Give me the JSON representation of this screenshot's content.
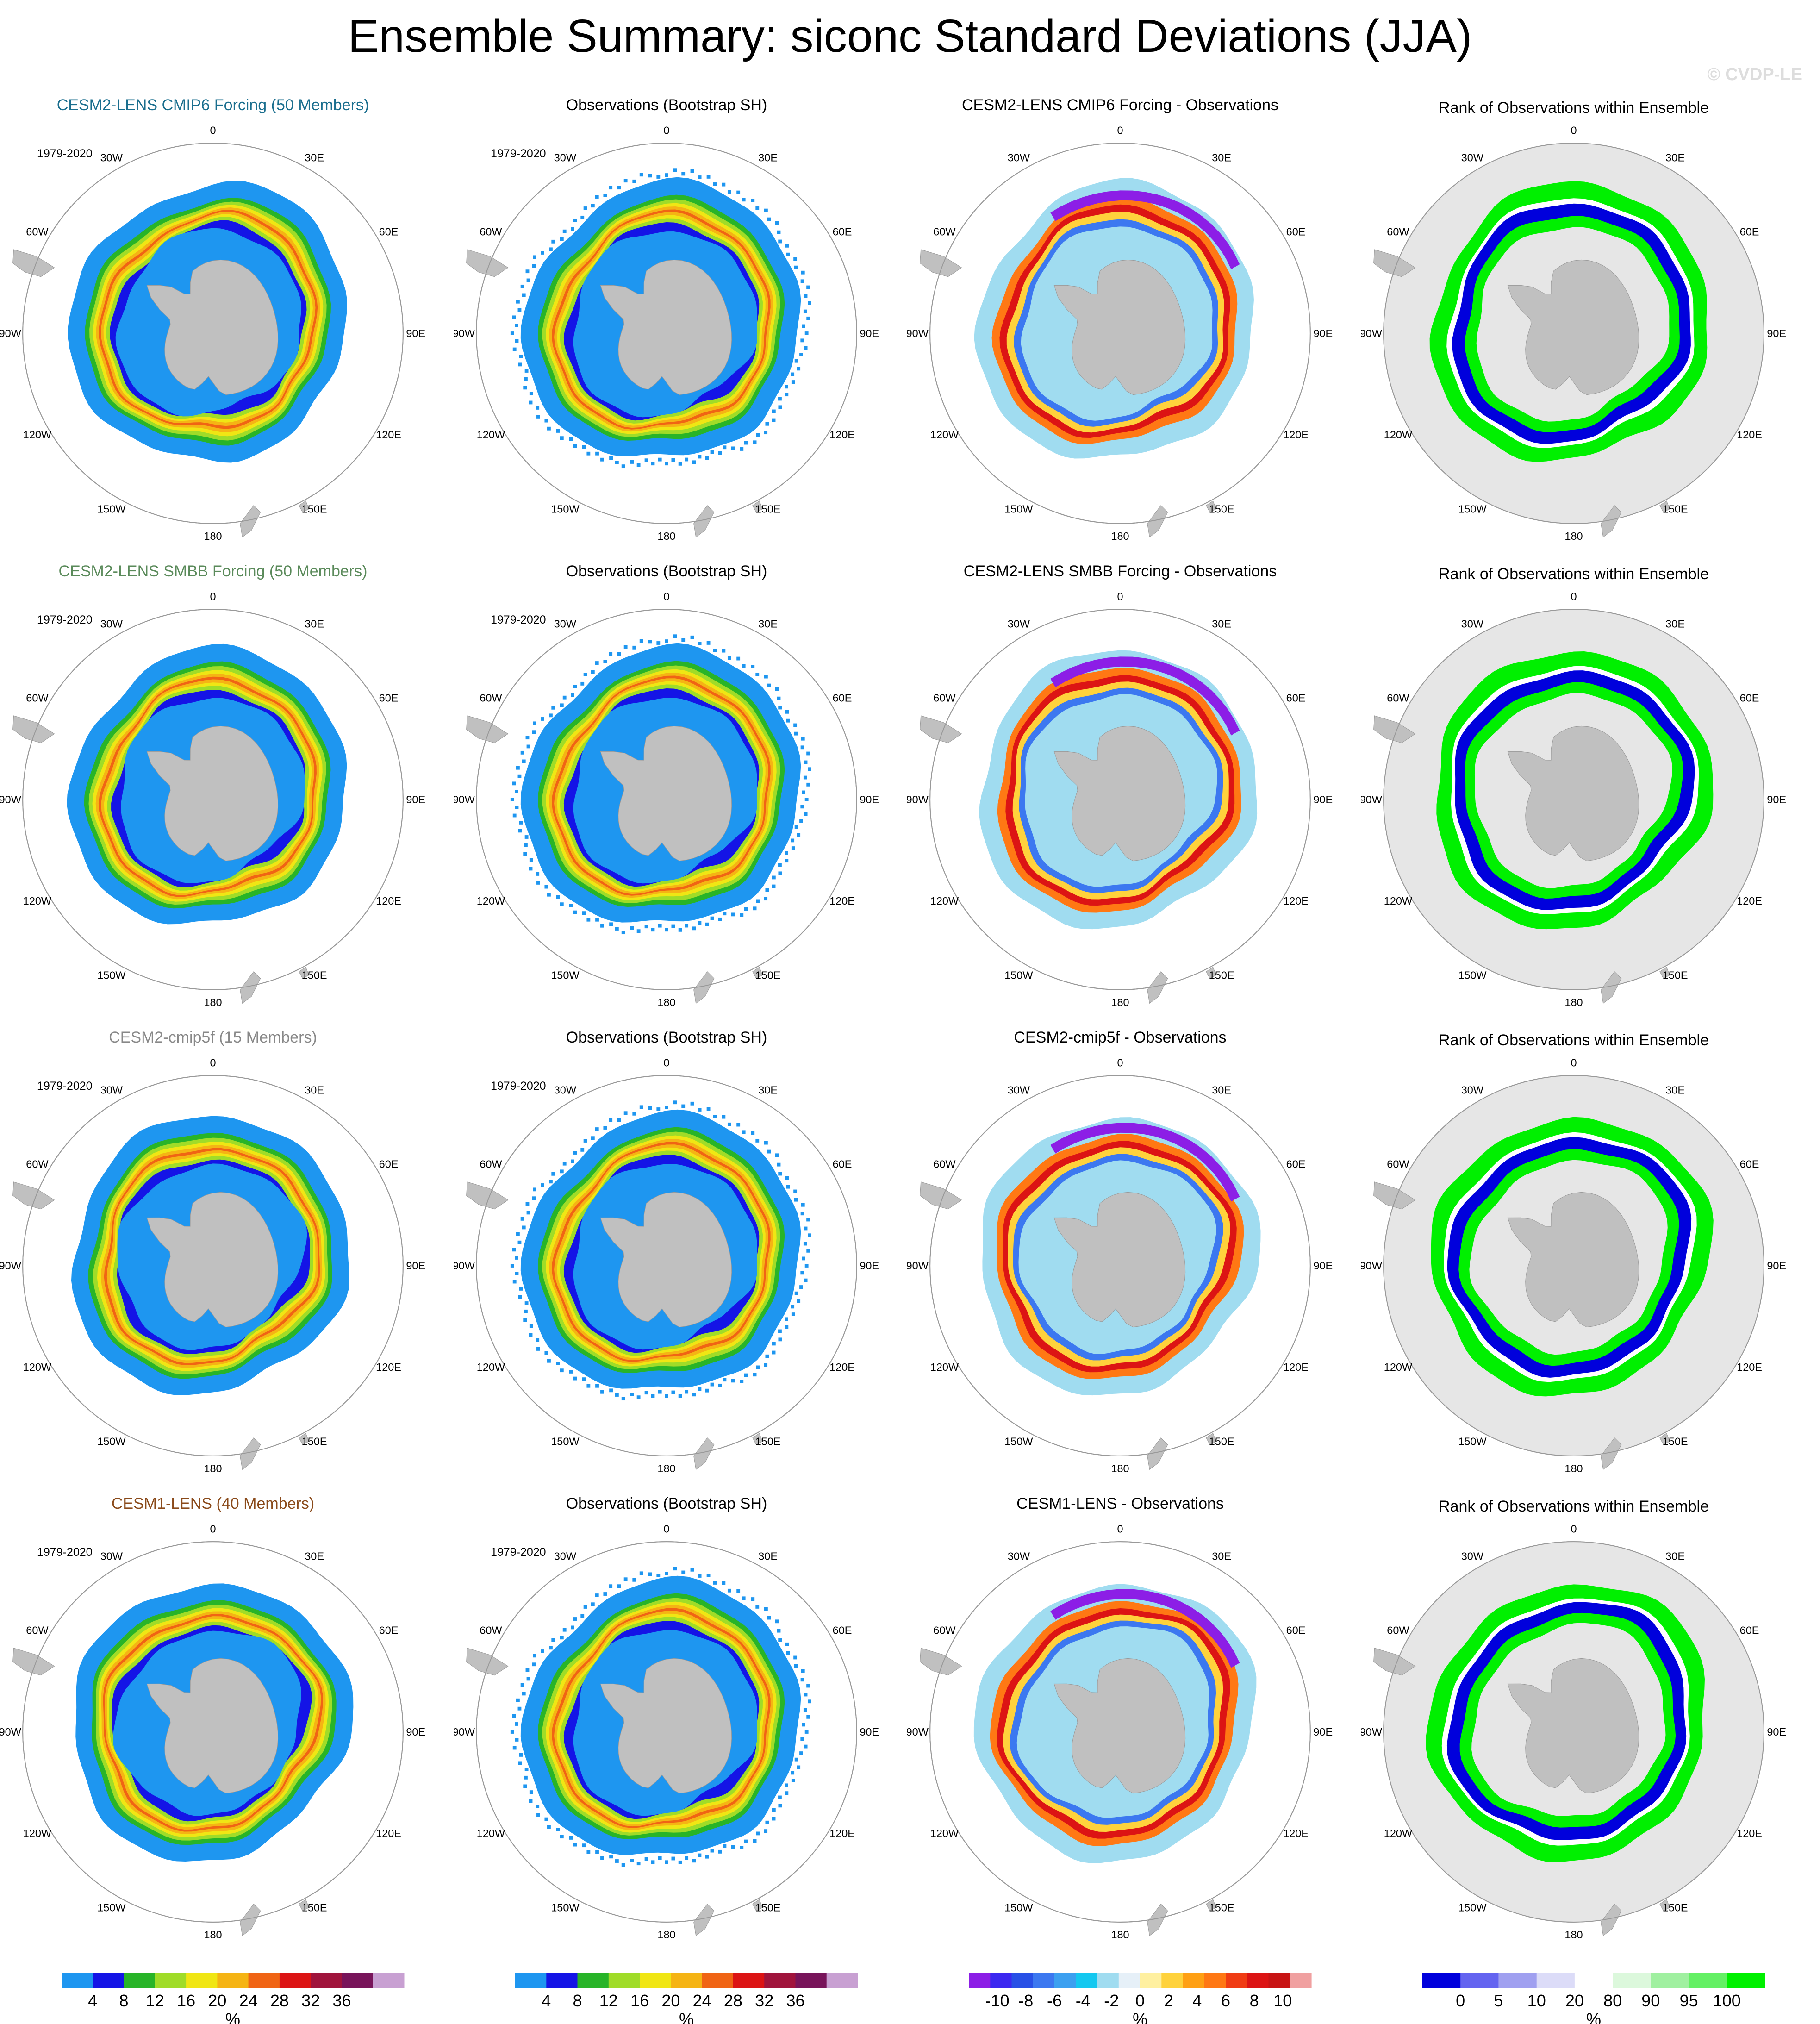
{
  "header": {
    "title": "Ensemble Summary: siconc Standard Deviations (JJA)",
    "watermark": "© CVDP-LE"
  },
  "period": "1979-2020",
  "lon_labels": [
    "0",
    "30E",
    "60E",
    "90E",
    "120E",
    "150E",
    "180",
    "150W",
    "120W",
    "90W",
    "60W",
    "30W"
  ],
  "colors": {
    "land": "#c0c0c0",
    "circle": "#999999",
    "rank_background": "#e6e6e6",
    "title_cmip6": "#1a6e8e",
    "title_smbb": "#5a8a5a",
    "title_cmip5f": "#888888",
    "title_cesm1": "#8a4a1a"
  },
  "rows": [
    {
      "model": {
        "title": "CESM2-LENS CMIP6 Forcing (50 Members)",
        "color": "#1a6e8e"
      },
      "obs": {
        "title": "Observations (Bootstrap SH)"
      },
      "diff": {
        "title": "CESM2-LENS CMIP6 Forcing - Observations"
      },
      "rank": {
        "title": "Rank of Observations within Ensemble"
      }
    },
    {
      "model": {
        "title": "CESM2-LENS SMBB Forcing (50 Members)",
        "color": "#5a8a5a"
      },
      "obs": {
        "title": "Observations (Bootstrap SH)"
      },
      "diff": {
        "title": "CESM2-LENS SMBB Forcing - Observations"
      },
      "rank": {
        "title": "Rank of Observations within Ensemble"
      }
    },
    {
      "model": {
        "title": "CESM2-cmip5f (15 Members)",
        "color": "#888888"
      },
      "obs": {
        "title": "Observations (Bootstrap SH)"
      },
      "diff": {
        "title": "CESM2-cmip5f - Observations"
      },
      "rank": {
        "title": "Rank of Observations within Ensemble"
      }
    },
    {
      "model": {
        "title": "CESM1-LENS (40 Members)",
        "color": "#8a4a1a"
      },
      "obs": {
        "title": "Observations (Bootstrap SH)"
      },
      "diff": {
        "title": "CESM1-LENS - Observations"
      },
      "rank": {
        "title": "Rank of Observations within Ensemble"
      }
    }
  ],
  "colorbars": {
    "stddev": {
      "unit": "%",
      "labels": [
        "4",
        "8",
        "12",
        "16",
        "20",
        "24",
        "28",
        "32",
        "36"
      ],
      "colors": [
        "#1e96f0",
        "#1414e6",
        "#28b428",
        "#a0dc28",
        "#f0e614",
        "#f5b414",
        "#f06414",
        "#dc1414",
        "#a0143c",
        "#78145a",
        "#c8a0d2"
      ]
    },
    "diff": {
      "unit": "%",
      "labels": [
        "-10",
        "-8",
        "-6",
        "-4",
        "-2",
        "0",
        "2",
        "4",
        "6",
        "8",
        "10"
      ],
      "colors": [
        "#8c1ee6",
        "#3c28f0",
        "#2850e6",
        "#3c78f0",
        "#3ca0f0",
        "#14c8f0",
        "#a0dcf0",
        "#e6f0f8",
        "#fff0a0",
        "#ffd23c",
        "#ffa014",
        "#ff7814",
        "#f03c14",
        "#dc1414",
        "#c81414",
        "#f0a0a0"
      ]
    },
    "rank": {
      "unit": "%",
      "labels": [
        "0",
        "5",
        "10",
        "20",
        "80",
        "90",
        "95",
        "100"
      ],
      "colors": [
        "#0000dc",
        "#6464f0",
        "#a0a0f0",
        "#dcdcf8",
        "#ffffff",
        "#dcf8dc",
        "#a0f0a0",
        "#64f064",
        "#00f000"
      ]
    }
  }
}
